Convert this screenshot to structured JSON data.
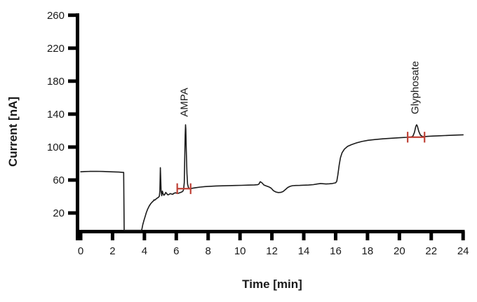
{
  "figure": {
    "background": "#ffffff"
  },
  "chart_data": {
    "type": "line",
    "title": "",
    "xlabel": "Time [min]",
    "ylabel": "Current [nA]",
    "xlim": [
      0,
      24
    ],
    "ylim": [
      0,
      260
    ],
    "x_ticks": [
      0,
      2,
      4,
      6,
      8,
      10,
      12,
      14,
      16,
      18,
      20,
      22,
      24
    ],
    "y_ticks": [
      20,
      60,
      100,
      140,
      180,
      220,
      260
    ],
    "grid": false,
    "legend": "none",
    "colors": {
      "trace": "#1b1b1b",
      "axis": "#000000",
      "text": "#1a1a1a",
      "integration_marker": "#bf4136"
    },
    "peaks": [
      {
        "label": "AMPA",
        "time_min": 6.58,
        "apex_nA": 127
      },
      {
        "label": "Glyphosate",
        "time_min": 21.08,
        "apex_nA": 127
      }
    ],
    "integration_markers": [
      {
        "peak": "AMPA",
        "t_start": 6.06,
        "t_end": 6.9,
        "level_nA": 49.5,
        "tick_half_nA": 6.5
      },
      {
        "peak": "Glyphosate",
        "t_start": 20.52,
        "t_end": 21.58,
        "level_nA": 112,
        "tick_half_nA": 6.5
      }
    ],
    "series": [
      {
        "name": "chromatogram",
        "points": [
          [
            0,
            70
          ],
          [
            0.25,
            70.3
          ],
          [
            0.6,
            70.5
          ],
          [
            1.0,
            70.6
          ],
          [
            1.4,
            70.4
          ],
          [
            1.9,
            70.0
          ],
          [
            2.4,
            69.6
          ],
          [
            2.6,
            69.4
          ],
          [
            2.7,
            69.2
          ],
          [
            2.73,
            -1
          ],
          [
            3.0,
            -1
          ],
          [
            3.5,
            -1
          ],
          [
            3.8,
            -1
          ],
          [
            3.84,
            0
          ],
          [
            3.9,
            6
          ],
          [
            3.97,
            11
          ],
          [
            4.05,
            16
          ],
          [
            4.12,
            20.5
          ],
          [
            4.2,
            24.5
          ],
          [
            4.3,
            28.5
          ],
          [
            4.4,
            31.5
          ],
          [
            4.5,
            33.5
          ],
          [
            4.56,
            34.5
          ],
          [
            4.6,
            36
          ],
          [
            4.64,
            35.5
          ],
          [
            4.72,
            36.8
          ],
          [
            4.8,
            38
          ],
          [
            4.88,
            39
          ],
          [
            4.94,
            40.5
          ],
          [
            4.97,
            47
          ],
          [
            5.0,
            75
          ],
          [
            5.02,
            65
          ],
          [
            5.05,
            46
          ],
          [
            5.09,
            41
          ],
          [
            5.13,
            46.5
          ],
          [
            5.17,
            43.5
          ],
          [
            5.22,
            41.5
          ],
          [
            5.28,
            42.5
          ],
          [
            5.34,
            45
          ],
          [
            5.4,
            43.5
          ],
          [
            5.47,
            42
          ],
          [
            5.54,
            42.5
          ],
          [
            5.62,
            43.5
          ],
          [
            5.7,
            43
          ],
          [
            5.78,
            42.8
          ],
          [
            5.87,
            44
          ],
          [
            5.95,
            44.5
          ],
          [
            6.03,
            44
          ],
          [
            6.1,
            43.8
          ],
          [
            6.18,
            44.3
          ],
          [
            6.27,
            45
          ],
          [
            6.35,
            45.6
          ],
          [
            6.42,
            46.6
          ],
          [
            6.46,
            48.5
          ],
          [
            6.5,
            57
          ],
          [
            6.53,
            85
          ],
          [
            6.56,
            115
          ],
          [
            6.58,
            127
          ],
          [
            6.6,
            122
          ],
          [
            6.63,
            95
          ],
          [
            6.67,
            68
          ],
          [
            6.71,
            55
          ],
          [
            6.76,
            51
          ],
          [
            6.82,
            49.4
          ],
          [
            6.9,
            49.6
          ],
          [
            7.0,
            50
          ],
          [
            7.2,
            50.7
          ],
          [
            7.5,
            51.4
          ],
          [
            7.8,
            52
          ],
          [
            8.1,
            52.4
          ],
          [
            8.5,
            52.8
          ],
          [
            8.9,
            53
          ],
          [
            9.3,
            53.2
          ],
          [
            9.7,
            53.4
          ],
          [
            10.1,
            53.6
          ],
          [
            10.5,
            53.8
          ],
          [
            10.9,
            54.1
          ],
          [
            11.1,
            54.3
          ],
          [
            11.18,
            55
          ],
          [
            11.27,
            58
          ],
          [
            11.38,
            56.5
          ],
          [
            11.5,
            54
          ],
          [
            11.65,
            52.8
          ],
          [
            11.8,
            51.8
          ],
          [
            11.95,
            50.2
          ],
          [
            12.1,
            47
          ],
          [
            12.25,
            45.5
          ],
          [
            12.4,
            44.8
          ],
          [
            12.55,
            45
          ],
          [
            12.7,
            46
          ],
          [
            12.85,
            48.5
          ],
          [
            13.0,
            51
          ],
          [
            13.15,
            52.4
          ],
          [
            13.3,
            53.1
          ],
          [
            13.5,
            53.4
          ],
          [
            13.75,
            53.5
          ],
          [
            14.0,
            53.7
          ],
          [
            14.3,
            53.9
          ],
          [
            14.6,
            54.4
          ],
          [
            14.85,
            55.2
          ],
          [
            15.05,
            55.8
          ],
          [
            15.2,
            55.5
          ],
          [
            15.4,
            55.2
          ],
          [
            15.6,
            55.4
          ],
          [
            15.8,
            55.8
          ],
          [
            16.0,
            56.6
          ],
          [
            16.07,
            58.5
          ],
          [
            16.14,
            66
          ],
          [
            16.22,
            78
          ],
          [
            16.3,
            87
          ],
          [
            16.4,
            93
          ],
          [
            16.55,
            97.5
          ],
          [
            16.75,
            100.8
          ],
          [
            17.0,
            103
          ],
          [
            17.3,
            105
          ],
          [
            17.65,
            106.8
          ],
          [
            18.05,
            108.2
          ],
          [
            18.5,
            109.2
          ],
          [
            19.0,
            110
          ],
          [
            19.5,
            110.7
          ],
          [
            20.0,
            111.3
          ],
          [
            20.45,
            111.8
          ],
          [
            20.75,
            112.3
          ],
          [
            20.85,
            113.2
          ],
          [
            20.95,
            118
          ],
          [
            21.03,
            125
          ],
          [
            21.08,
            127
          ],
          [
            21.13,
            125.5
          ],
          [
            21.22,
            119
          ],
          [
            21.32,
            114.5
          ],
          [
            21.45,
            112.8
          ],
          [
            21.6,
            112.7
          ],
          [
            21.8,
            113
          ],
          [
            22.1,
            113.3
          ],
          [
            22.5,
            113.7
          ],
          [
            23.0,
            114.1
          ],
          [
            23.5,
            114.5
          ],
          [
            24.0,
            114.9
          ]
        ]
      }
    ]
  }
}
